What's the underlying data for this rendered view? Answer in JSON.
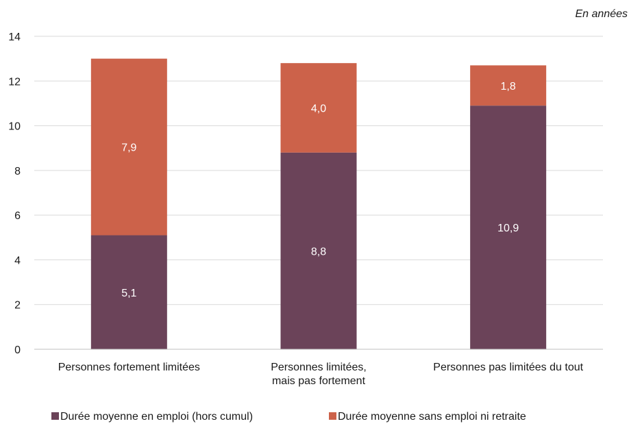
{
  "chart_data": {
    "type": "bar",
    "stacked": true,
    "unit_note": "En années",
    "categories": [
      [
        "Personnes fortement limitées"
      ],
      [
        "Personnes limitées,",
        "mais pas fortement"
      ],
      [
        "Personnes pas limitées du tout"
      ]
    ],
    "series": [
      {
        "name": "Durée moyenne en emploi (hors cumul)",
        "values": [
          5.1,
          8.8,
          10.9
        ],
        "labels": [
          "5,1",
          "8,8",
          "10,9"
        ],
        "color": "#6b4359"
      },
      {
        "name": "Durée moyenne sans emploi ni retraite",
        "values": [
          7.9,
          4.0,
          1.8
        ],
        "labels": [
          "7,9",
          "4,0",
          "1,8"
        ],
        "color": "#cc624a"
      }
    ],
    "ylim": [
      0,
      14
    ],
    "yticks": [
      0,
      2,
      4,
      6,
      8,
      10,
      12,
      14
    ],
    "grid": true,
    "legend_position": "bottom"
  }
}
